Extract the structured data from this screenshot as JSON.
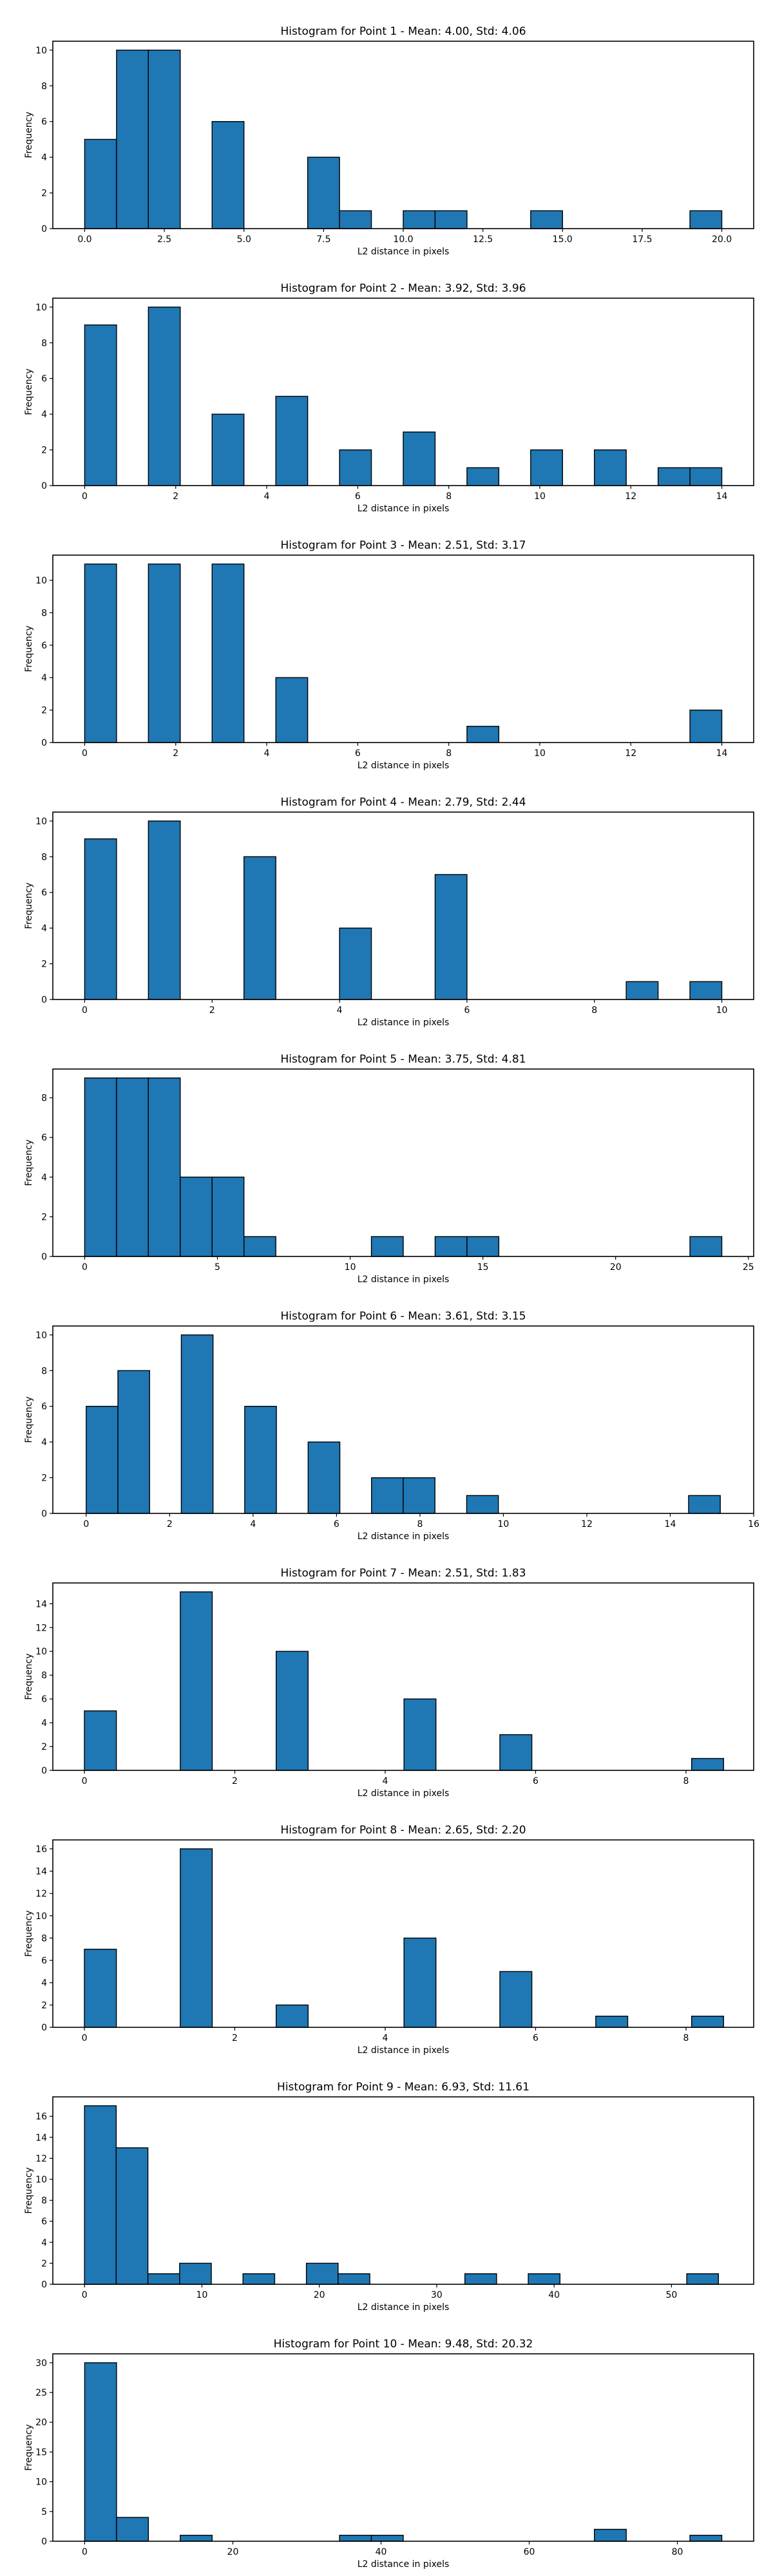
{
  "chart_data": [
    {
      "type": "bar",
      "title": "Histogram for Point 1 - Mean: 4.00, Std: 4.06",
      "xlabel": "L2 distance in pixels",
      "ylabel": "Frequency",
      "xlim": [
        -1.0,
        21.0
      ],
      "ylim": [
        0,
        10.5
      ],
      "x_ticks": [
        0.0,
        2.5,
        5.0,
        7.5,
        10.0,
        12.5,
        15.0,
        17.5,
        20.0
      ],
      "x_tick_labels": [
        "0.0",
        "2.5",
        "5.0",
        "7.5",
        "10.0",
        "12.5",
        "15.0",
        "17.5",
        "20.0"
      ],
      "y_ticks": [
        0,
        2,
        4,
        6,
        8,
        10
      ],
      "bin_edges": [
        0.0,
        1.0,
        2.0,
        3.0,
        4.0,
        5.0,
        6.0,
        7.0,
        8.0,
        9.0,
        10.0,
        11.0,
        12.0,
        13.0,
        14.0,
        15.0,
        16.0,
        17.0,
        18.0,
        19.0,
        20.0
      ],
      "counts": [
        5,
        10,
        10,
        0,
        6,
        0,
        0,
        4,
        1,
        0,
        1,
        1,
        0,
        0,
        1,
        0,
        0,
        0,
        0,
        1
      ],
      "color": "#1f77b4"
    },
    {
      "type": "bar",
      "title": "Histogram for Point 2 - Mean: 3.92, Std: 3.96",
      "xlabel": "L2 distance in pixels",
      "ylabel": "Frequency",
      "xlim": [
        -0.7,
        14.7
      ],
      "ylim": [
        0,
        10.5
      ],
      "x_ticks": [
        0,
        2,
        4,
        6,
        8,
        10,
        12,
        14
      ],
      "x_tick_labels": [
        "0",
        "2",
        "4",
        "6",
        "8",
        "10",
        "12",
        "14"
      ],
      "y_ticks": [
        0,
        2,
        4,
        6,
        8,
        10
      ],
      "bin_edges": [
        0.0,
        0.7,
        1.4,
        2.1,
        2.8,
        3.5,
        4.2,
        4.9,
        5.6,
        6.3,
        7.0,
        7.7,
        8.4,
        9.1,
        9.8,
        10.5,
        11.2,
        11.9,
        12.6,
        13.3,
        14.0
      ],
      "counts": [
        9,
        0,
        10,
        0,
        4,
        0,
        5,
        0,
        2,
        0,
        3,
        0,
        1,
        0,
        2,
        0,
        2,
        0,
        1,
        1
      ],
      "color": "#1f77b4"
    },
    {
      "type": "bar",
      "title": "Histogram for Point 3 - Mean: 2.51, Std: 3.17",
      "xlabel": "L2 distance in pixels",
      "ylabel": "Frequency",
      "xlim": [
        -0.7,
        14.7
      ],
      "ylim": [
        0,
        11.55
      ],
      "x_ticks": [
        0,
        2,
        4,
        6,
        8,
        10,
        12,
        14
      ],
      "x_tick_labels": [
        "0",
        "2",
        "4",
        "6",
        "8",
        "10",
        "12",
        "14"
      ],
      "y_ticks": [
        0,
        2,
        4,
        6,
        8,
        10
      ],
      "bin_edges": [
        0.0,
        0.7,
        1.4,
        2.1,
        2.8,
        3.5,
        4.2,
        4.9,
        5.6,
        6.3,
        7.0,
        7.7,
        8.4,
        9.1,
        9.8,
        10.5,
        11.2,
        11.9,
        12.6,
        13.3,
        14.0
      ],
      "counts": [
        11,
        0,
        11,
        0,
        11,
        0,
        4,
        0,
        0,
        0,
        0,
        0,
        1,
        0,
        0,
        0,
        0,
        0,
        0,
        2
      ],
      "color": "#1f77b4"
    },
    {
      "type": "bar",
      "title": "Histogram for Point 4 - Mean: 2.79, Std: 2.44",
      "xlabel": "L2 distance in pixels",
      "ylabel": "Frequency",
      "xlim": [
        -0.5,
        10.5
      ],
      "ylim": [
        0,
        10.5
      ],
      "x_ticks": [
        0,
        2,
        4,
        6,
        8,
        10
      ],
      "x_tick_labels": [
        "0",
        "2",
        "4",
        "6",
        "8",
        "10"
      ],
      "y_ticks": [
        0,
        2,
        4,
        6,
        8,
        10
      ],
      "bin_edges": [
        0.0,
        0.5,
        1.0,
        1.5,
        2.0,
        2.5,
        3.0,
        3.5,
        4.0,
        4.5,
        5.0,
        5.5,
        6.0,
        6.5,
        7.0,
        7.5,
        8.0,
        8.5,
        9.0,
        9.5,
        10.0
      ],
      "counts": [
        9,
        0,
        10,
        0,
        0,
        8,
        0,
        0,
        4,
        0,
        0,
        7,
        0,
        0,
        0,
        0,
        0,
        1,
        0,
        1
      ],
      "color": "#1f77b4"
    },
    {
      "type": "bar",
      "title": "Histogram for Point 5 - Mean: 3.75, Std: 4.81",
      "xlabel": "L2 distance in pixels",
      "ylabel": "Frequency",
      "xlim": [
        -1.2,
        25.2
      ],
      "ylim": [
        0,
        9.45
      ],
      "x_ticks": [
        0,
        5,
        10,
        15,
        20,
        25
      ],
      "x_tick_labels": [
        "0",
        "5",
        "10",
        "15",
        "20",
        "25"
      ],
      "y_ticks": [
        0,
        2,
        4,
        6,
        8
      ],
      "bin_edges": [
        0.0,
        1.2,
        2.4,
        3.6,
        4.8,
        6.0,
        7.2,
        8.4,
        9.6,
        10.8,
        12.0,
        13.2,
        14.4,
        15.6,
        16.8,
        18.0,
        19.2,
        20.4,
        21.6,
        22.8,
        24.0
      ],
      "counts": [
        9,
        9,
        9,
        4,
        4,
        1,
        0,
        0,
        0,
        1,
        0,
        1,
        1,
        0,
        0,
        0,
        0,
        0,
        0,
        1
      ],
      "color": "#1f77b4"
    },
    {
      "type": "bar",
      "title": "Histogram for Point 6 - Mean: 3.61, Std: 3.15",
      "xlabel": "L2 distance in pixels",
      "ylabel": "Frequency",
      "xlim": [
        -0.8,
        16.0
      ],
      "ylim": [
        0,
        10.5
      ],
      "x_ticks": [
        0,
        2,
        4,
        6,
        8,
        10,
        12,
        14,
        16
      ],
      "x_tick_labels": [
        "0",
        "2",
        "4",
        "6",
        "8",
        "10",
        "12",
        "14",
        "16"
      ],
      "y_ticks": [
        0,
        2,
        4,
        6,
        8,
        10
      ],
      "bin_edges": [
        0.0,
        0.76,
        1.52,
        2.28,
        3.04,
        3.8,
        4.56,
        5.32,
        6.08,
        6.84,
        7.6,
        8.36,
        9.12,
        9.88,
        10.64,
        11.4,
        12.16,
        12.92,
        13.68,
        14.44,
        15.2
      ],
      "counts": [
        6,
        8,
        0,
        10,
        0,
        6,
        0,
        4,
        0,
        2,
        2,
        0,
        1,
        0,
        0,
        0,
        0,
        0,
        0,
        1
      ],
      "color": "#1f77b4"
    },
    {
      "type": "bar",
      "title": "Histogram for Point 7 - Mean: 2.51, Std: 1.83",
      "xlabel": "L2 distance in pixels",
      "ylabel": "Frequency",
      "xlim": [
        -0.42,
        8.9
      ],
      "ylim": [
        0,
        15.75
      ],
      "x_ticks": [
        0,
        2,
        4,
        6,
        8
      ],
      "x_tick_labels": [
        "0",
        "2",
        "4",
        "6",
        "8"
      ],
      "y_ticks": [
        0,
        2,
        4,
        6,
        8,
        10,
        12,
        14
      ],
      "bin_edges": [
        0.0,
        0.425,
        0.85,
        1.275,
        1.7,
        2.125,
        2.55,
        2.975,
        3.4,
        3.825,
        4.25,
        4.675,
        5.1,
        5.525,
        5.95,
        6.375,
        6.8,
        7.225,
        7.65,
        8.075,
        8.5
      ],
      "counts": [
        5,
        0,
        0,
        15,
        0,
        0,
        10,
        0,
        0,
        0,
        6,
        0,
        0,
        3,
        0,
        0,
        0,
        0,
        0,
        1
      ],
      "color": "#1f77b4"
    },
    {
      "type": "bar",
      "title": "Histogram for Point 8 - Mean: 2.65, Std: 2.20",
      "xlabel": "L2 distance in pixels",
      "ylabel": "Frequency",
      "xlim": [
        -0.42,
        8.9
      ],
      "ylim": [
        0,
        16.8
      ],
      "x_ticks": [
        0,
        2,
        4,
        6,
        8
      ],
      "x_tick_labels": [
        "0",
        "2",
        "4",
        "6",
        "8"
      ],
      "y_ticks": [
        0,
        2,
        4,
        6,
        8,
        10,
        12,
        14,
        16
      ],
      "bin_edges": [
        0.0,
        0.425,
        0.85,
        1.275,
        1.7,
        2.125,
        2.55,
        2.975,
        3.4,
        3.825,
        4.25,
        4.675,
        5.1,
        5.525,
        5.95,
        6.375,
        6.8,
        7.225,
        7.65,
        8.075,
        8.5
      ],
      "counts": [
        7,
        0,
        0,
        16,
        0,
        0,
        2,
        0,
        0,
        0,
        8,
        0,
        0,
        5,
        0,
        0,
        1,
        0,
        0,
        1
      ],
      "color": "#1f77b4"
    },
    {
      "type": "bar",
      "title": "Histogram for Point 9 - Mean: 6.93, Std: 11.61",
      "xlabel": "L2 distance in pixels",
      "ylabel": "Frequency",
      "xlim": [
        -2.7,
        57.0
      ],
      "ylim": [
        0,
        17.85
      ],
      "x_ticks": [
        0,
        10,
        20,
        30,
        40,
        50
      ],
      "x_tick_labels": [
        "0",
        "10",
        "20",
        "30",
        "40",
        "50"
      ],
      "y_ticks": [
        0,
        2,
        4,
        6,
        8,
        10,
        12,
        14,
        16
      ],
      "bin_edges": [
        0.0,
        2.7,
        5.4,
        8.1,
        10.8,
        13.5,
        16.2,
        18.9,
        21.6,
        24.3,
        27.0,
        29.7,
        32.4,
        35.1,
        37.8,
        40.5,
        43.2,
        45.9,
        48.6,
        51.3,
        54.0
      ],
      "counts": [
        17,
        13,
        1,
        2,
        0,
        1,
        0,
        2,
        1,
        0,
        0,
        0,
        1,
        0,
        1,
        0,
        0,
        0,
        0,
        1
      ],
      "color": "#1f77b4"
    },
    {
      "type": "bar",
      "title": "Histogram for Point 10 - Mean: 9.48, Std: 20.32",
      "xlabel": "L2 distance in pixels",
      "ylabel": "Frequency",
      "xlim": [
        -4.3,
        90.3
      ],
      "ylim": [
        0,
        31.5
      ],
      "x_ticks": [
        0,
        20,
        40,
        60,
        80
      ],
      "x_tick_labels": [
        "0",
        "20",
        "40",
        "60",
        "80"
      ],
      "y_ticks": [
        0,
        5,
        10,
        15,
        20,
        25,
        30
      ],
      "bin_edges": [
        0.0,
        4.3,
        8.6,
        12.9,
        17.2,
        21.5,
        25.8,
        30.1,
        34.4,
        38.7,
        43.0,
        47.3,
        51.6,
        55.9,
        60.2,
        64.5,
        68.8,
        73.1,
        77.4,
        81.7,
        86.0
      ],
      "counts": [
        30,
        4,
        0,
        1,
        0,
        0,
        0,
        0,
        1,
        1,
        0,
        0,
        0,
        0,
        0,
        0,
        2,
        0,
        0,
        1
      ],
      "color": "#1f77b4"
    }
  ]
}
